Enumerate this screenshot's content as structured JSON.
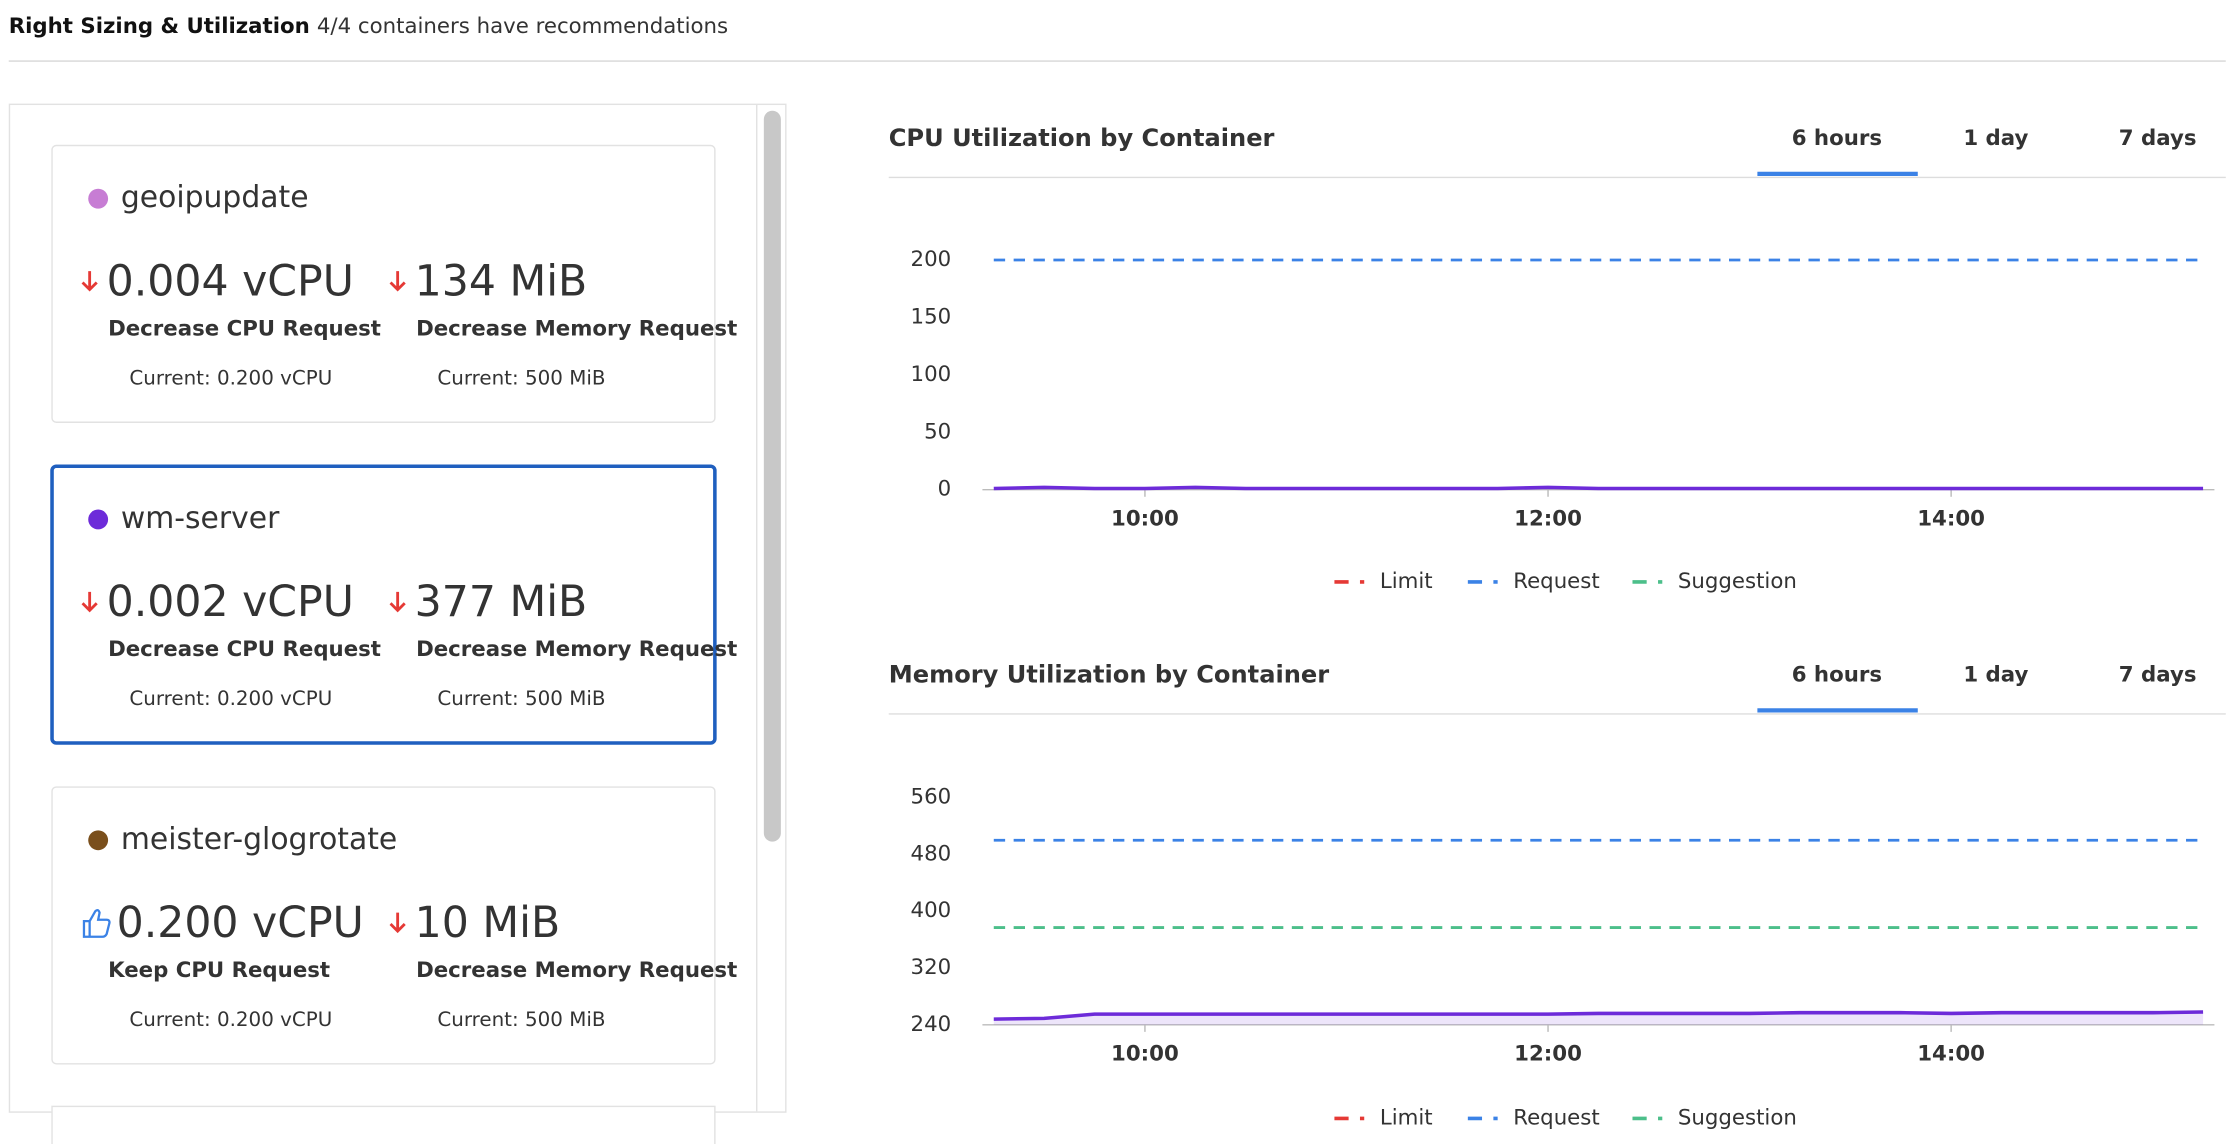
{
  "header": {
    "title": "Right Sizing & Utilization",
    "subtitle": "4/4 containers have recommendations"
  },
  "selected_card": 1,
  "cards": [
    {
      "name": "geoipupdate",
      "color": "#c77dd4",
      "cpu": {
        "trend": "down",
        "value": "0.004 vCPU",
        "action": "Decrease CPU Request",
        "current": "Current: 0.200 vCPU"
      },
      "memory": {
        "trend": "down",
        "value": "134 MiB",
        "action": "Decrease Memory Request",
        "current": "Current: 500 MiB"
      }
    },
    {
      "name": "wm-server",
      "color": "#6d2bd9",
      "cpu": {
        "trend": "down",
        "value": "0.002 vCPU",
        "action": "Decrease CPU Request",
        "current": "Current: 0.200 vCPU"
      },
      "memory": {
        "trend": "down",
        "value": "377 MiB",
        "action": "Decrease Memory Request",
        "current": "Current: 500 MiB"
      }
    },
    {
      "name": "meister-glogrotate",
      "color": "#7a4f1c",
      "cpu": {
        "trend": "keep",
        "value": "0.200 vCPU",
        "action": "Keep CPU Request",
        "current": "Current: 0.200 vCPU"
      },
      "memory": {
        "trend": "down",
        "value": "10 MiB",
        "action": "Decrease Memory Request",
        "current": "Current: 500 MiB"
      }
    }
  ],
  "charts": [
    {
      "type": "line",
      "title": "CPU Utilization by Container",
      "tabs": [
        "6 hours",
        "1 day",
        "7 days"
      ],
      "active_tab": 0,
      "x": [
        9.25,
        9.5,
        9.75,
        10,
        10.25,
        10.5,
        10.75,
        11,
        11.25,
        11.5,
        11.75,
        12,
        12.25,
        12.5,
        12.75,
        13,
        13.25,
        13.5,
        13.75,
        14,
        14.25,
        14.5,
        14.75,
        15,
        15.25
      ],
      "xlim": [
        9.25,
        15.25
      ],
      "xticks": [
        {
          "value": 10,
          "label": "10:00"
        },
        {
          "value": 12,
          "label": "12:00"
        },
        {
          "value": 14,
          "label": "14:00"
        }
      ],
      "ylim": [
        0,
        220
      ],
      "yticks": [
        0,
        50,
        100,
        150,
        200
      ],
      "series": [
        {
          "name": "Limit",
          "color": "#e53935",
          "dash": true,
          "values": [
            null,
            null,
            null,
            null,
            null,
            null,
            null,
            null,
            null,
            null,
            null,
            null,
            null,
            null,
            null,
            null,
            null,
            null,
            null,
            null,
            null,
            null,
            null,
            null,
            null
          ]
        },
        {
          "name": "Request",
          "color": "#3b82e6",
          "dash": true,
          "values": [
            200,
            200,
            200,
            200,
            200,
            200,
            200,
            200,
            200,
            200,
            200,
            200,
            200,
            200,
            200,
            200,
            200,
            200,
            200,
            200,
            200,
            200,
            200,
            200,
            200
          ]
        },
        {
          "name": "Suggestion",
          "color": "#4cbf8a",
          "dash": true,
          "values": [
            null,
            null,
            null,
            null,
            null,
            null,
            null,
            null,
            null,
            null,
            null,
            null,
            null,
            null,
            null,
            null,
            null,
            null,
            null,
            null,
            null,
            null,
            null,
            null,
            null
          ]
        },
        {
          "color": "#6d2bd9",
          "area": false,
          "values": [
            1,
            2,
            1,
            1,
            2,
            1,
            1,
            1,
            1,
            1,
            1,
            2,
            1,
            1,
            1,
            1,
            1,
            1,
            1,
            1,
            1,
            1,
            1,
            1,
            1
          ]
        }
      ]
    },
    {
      "type": "line",
      "title": "Memory Utilization by Container",
      "tabs": [
        "6 hours",
        "1 day",
        "7 days"
      ],
      "active_tab": 0,
      "x": [
        9.25,
        9.5,
        9.75,
        10,
        10.25,
        10.5,
        10.75,
        11,
        11.25,
        11.5,
        11.75,
        12,
        12.25,
        12.5,
        12.75,
        13,
        13.25,
        13.5,
        13.75,
        14,
        14.25,
        14.5,
        14.75,
        15,
        15.25
      ],
      "xlim": [
        9.25,
        15.25
      ],
      "xticks": [
        {
          "value": 10,
          "label": "10:00"
        },
        {
          "value": 12,
          "label": "12:00"
        },
        {
          "value": 14,
          "label": "14:00"
        }
      ],
      "ylim": [
        240,
        590
      ],
      "yticks": [
        240,
        320,
        400,
        480,
        560
      ],
      "series": [
        {
          "name": "Limit",
          "color": "#e53935",
          "dash": true,
          "values": [
            null,
            null,
            null,
            null,
            null,
            null,
            null,
            null,
            null,
            null,
            null,
            null,
            null,
            null,
            null,
            null,
            null,
            null,
            null,
            null,
            null,
            null,
            null,
            null,
            null
          ]
        },
        {
          "name": "Request",
          "color": "#3b82e6",
          "dash": true,
          "values": [
            500,
            500,
            500,
            500,
            500,
            500,
            500,
            500,
            500,
            500,
            500,
            500,
            500,
            500,
            500,
            500,
            500,
            500,
            500,
            500,
            500,
            500,
            500,
            500,
            500
          ]
        },
        {
          "name": "Suggestion",
          "color": "#4cbf8a",
          "dash": true,
          "values": [
            377,
            377,
            377,
            377,
            377,
            377,
            377,
            377,
            377,
            377,
            377,
            377,
            377,
            377,
            377,
            377,
            377,
            377,
            377,
            377,
            377,
            377,
            377,
            377,
            377
          ]
        },
        {
          "color": "#6d2bd9",
          "area": true,
          "values": [
            248,
            249,
            255,
            255,
            255,
            255,
            255,
            255,
            255,
            255,
            255,
            255,
            256,
            256,
            256,
            256,
            257,
            257,
            257,
            256,
            257,
            257,
            257,
            257,
            258
          ]
        }
      ]
    }
  ]
}
